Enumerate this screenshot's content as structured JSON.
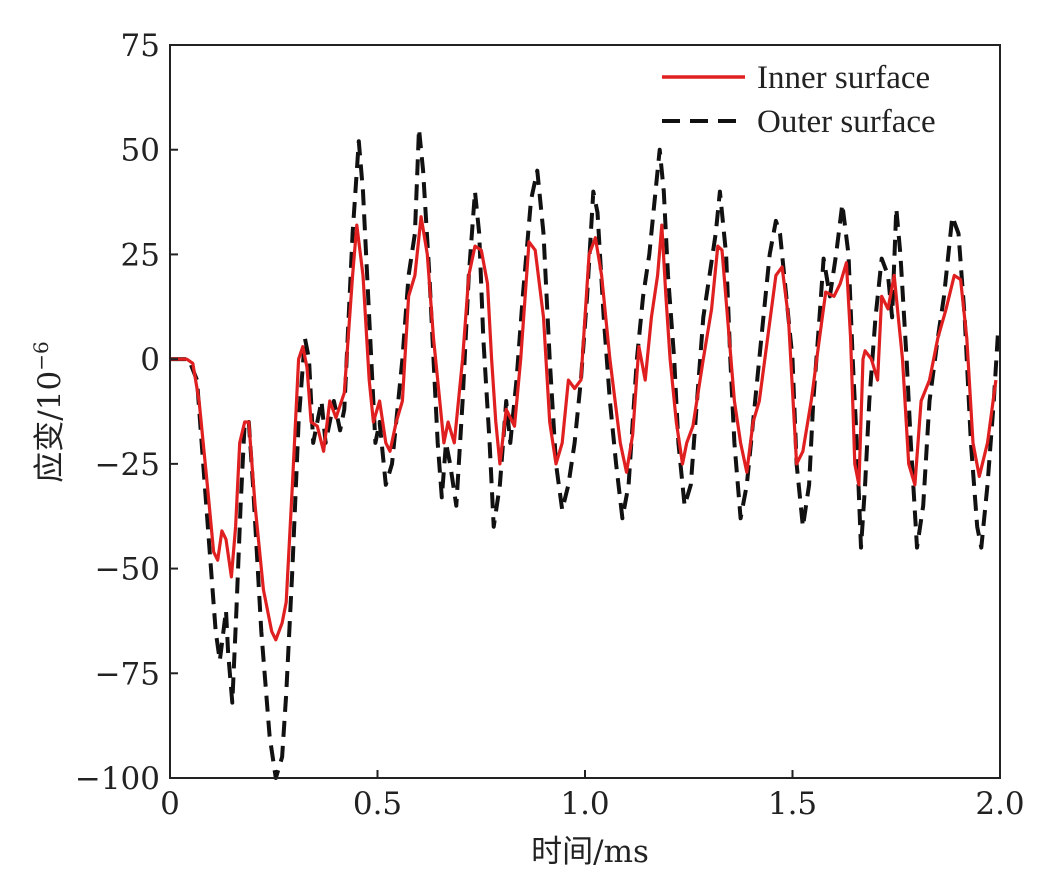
{
  "chart_data": {
    "type": "line",
    "title": "",
    "xlabel": "时间/ms",
    "ylabel_base": "应变/10",
    "ylabel_exp": "−6",
    "xlim": [
      0,
      2.0
    ],
    "ylim": [
      -100,
      75
    ],
    "x_ticks": [
      0,
      0.5,
      1.0,
      1.5,
      2.0
    ],
    "x_tick_labels": [
      "0",
      "0.5",
      "1.0",
      "1.5",
      "2.0"
    ],
    "y_ticks": [
      75,
      50,
      25,
      0,
      -25,
      -50,
      -75,
      -100
    ],
    "y_tick_labels": [
      "75",
      "50",
      "25",
      "0",
      "−25",
      "−50",
      "−75",
      "−100"
    ],
    "grid": false,
    "legend_position": "top-right",
    "series": [
      {
        "name": "Inner surface",
        "color": "#e02020",
        "style": "solid",
        "points": [
          [
            0,
            0
          ],
          [
            0.04,
            0
          ],
          [
            0.055,
            -1
          ],
          [
            0.07,
            -10
          ],
          [
            0.09,
            -30
          ],
          [
            0.105,
            -46
          ],
          [
            0.115,
            -48
          ],
          [
            0.125,
            -41
          ],
          [
            0.135,
            -43
          ],
          [
            0.148,
            -52
          ],
          [
            0.158,
            -40
          ],
          [
            0.168,
            -20
          ],
          [
            0.18,
            -15
          ],
          [
            0.19,
            -15
          ],
          [
            0.205,
            -35
          ],
          [
            0.225,
            -55
          ],
          [
            0.245,
            -65
          ],
          [
            0.255,
            -67
          ],
          [
            0.27,
            -63
          ],
          [
            0.28,
            -58
          ],
          [
            0.295,
            -30
          ],
          [
            0.31,
            0
          ],
          [
            0.32,
            3
          ],
          [
            0.33,
            -2
          ],
          [
            0.34,
            -15
          ],
          [
            0.355,
            -16
          ],
          [
            0.37,
            -22
          ],
          [
            0.385,
            -10
          ],
          [
            0.4,
            -14
          ],
          [
            0.42,
            -8
          ],
          [
            0.44,
            20
          ],
          [
            0.45,
            32
          ],
          [
            0.465,
            20
          ],
          [
            0.48,
            -5
          ],
          [
            0.49,
            -15
          ],
          [
            0.505,
            -10
          ],
          [
            0.52,
            -20
          ],
          [
            0.53,
            -22
          ],
          [
            0.545,
            -15
          ],
          [
            0.56,
            -10
          ],
          [
            0.575,
            15
          ],
          [
            0.59,
            20
          ],
          [
            0.605,
            34
          ],
          [
            0.62,
            25
          ],
          [
            0.635,
            5
          ],
          [
            0.645,
            -5
          ],
          [
            0.66,
            -20
          ],
          [
            0.67,
            -15
          ],
          [
            0.685,
            -20
          ],
          [
            0.705,
            0
          ],
          [
            0.72,
            20
          ],
          [
            0.735,
            27
          ],
          [
            0.75,
            26
          ],
          [
            0.765,
            18
          ],
          [
            0.775,
            0
          ],
          [
            0.785,
            -15
          ],
          [
            0.795,
            -25
          ],
          [
            0.81,
            -12
          ],
          [
            0.83,
            -16
          ],
          [
            0.845,
            0
          ],
          [
            0.865,
            28
          ],
          [
            0.88,
            26
          ],
          [
            0.9,
            10
          ],
          [
            0.915,
            -15
          ],
          [
            0.93,
            -25
          ],
          [
            0.945,
            -20
          ],
          [
            0.96,
            -5
          ],
          [
            0.975,
            -7
          ],
          [
            0.99,
            -5
          ],
          [
            1.01,
            25
          ],
          [
            1.025,
            29
          ],
          [
            1.04,
            20
          ],
          [
            1.06,
            0
          ],
          [
            1.085,
            -20
          ],
          [
            1.1,
            -27
          ],
          [
            1.115,
            -18
          ],
          [
            1.13,
            3
          ],
          [
            1.145,
            -5
          ],
          [
            1.16,
            10
          ],
          [
            1.175,
            20
          ],
          [
            1.185,
            32
          ],
          [
            1.195,
            15
          ],
          [
            1.205,
            0
          ],
          [
            1.22,
            -15
          ],
          [
            1.235,
            -25
          ],
          [
            1.245,
            -20
          ],
          [
            1.26,
            -16
          ],
          [
            1.285,
            0
          ],
          [
            1.305,
            12
          ],
          [
            1.32,
            27
          ],
          [
            1.33,
            26
          ],
          [
            1.345,
            8
          ],
          [
            1.36,
            -10
          ],
          [
            1.375,
            -20
          ],
          [
            1.39,
            -27
          ],
          [
            1.405,
            -15
          ],
          [
            1.42,
            -10
          ],
          [
            1.44,
            5
          ],
          [
            1.46,
            20
          ],
          [
            1.475,
            22
          ],
          [
            1.49,
            10
          ],
          [
            1.51,
            -25
          ],
          [
            1.525,
            -22
          ],
          [
            1.545,
            -10
          ],
          [
            1.565,
            5
          ],
          [
            1.58,
            16
          ],
          [
            1.6,
            15
          ],
          [
            1.615,
            18
          ],
          [
            1.63,
            23
          ],
          [
            1.64,
            5
          ],
          [
            1.65,
            -25
          ],
          [
            1.66,
            -30
          ],
          [
            1.67,
            0
          ],
          [
            1.675,
            2
          ],
          [
            1.69,
            0
          ],
          [
            1.705,
            -5
          ],
          [
            1.715,
            15
          ],
          [
            1.73,
            12
          ],
          [
            1.745,
            20
          ],
          [
            1.755,
            10
          ],
          [
            1.765,
            0
          ],
          [
            1.78,
            -25
          ],
          [
            1.795,
            -30
          ],
          [
            1.81,
            -10
          ],
          [
            1.83,
            -5
          ],
          [
            1.85,
            5
          ],
          [
            1.87,
            12
          ],
          [
            1.89,
            20
          ],
          [
            1.905,
            19
          ],
          [
            1.92,
            5
          ],
          [
            1.935,
            -20
          ],
          [
            1.95,
            -28
          ],
          [
            1.97,
            -20
          ],
          [
            1.99,
            -5
          ]
        ]
      },
      {
        "name": "Outer surface",
        "color": "#111111",
        "style": "dashed",
        "points": [
          [
            0,
            0
          ],
          [
            0.045,
            0
          ],
          [
            0.065,
            -5
          ],
          [
            0.08,
            -25
          ],
          [
            0.095,
            -45
          ],
          [
            0.11,
            -65
          ],
          [
            0.12,
            -72
          ],
          [
            0.135,
            -60
          ],
          [
            0.14,
            -70
          ],
          [
            0.15,
            -82
          ],
          [
            0.16,
            -60
          ],
          [
            0.17,
            -35
          ],
          [
            0.18,
            -15
          ],
          [
            0.19,
            -15
          ],
          [
            0.2,
            -30
          ],
          [
            0.22,
            -65
          ],
          [
            0.24,
            -90
          ],
          [
            0.255,
            -100
          ],
          [
            0.27,
            -95
          ],
          [
            0.28,
            -80
          ],
          [
            0.295,
            -50
          ],
          [
            0.31,
            -15
          ],
          [
            0.325,
            5
          ],
          [
            0.335,
            0
          ],
          [
            0.345,
            -20
          ],
          [
            0.355,
            -15
          ],
          [
            0.365,
            -10
          ],
          [
            0.375,
            -20
          ],
          [
            0.385,
            -15
          ],
          [
            0.395,
            -10
          ],
          [
            0.41,
            -17
          ],
          [
            0.42,
            -12
          ],
          [
            0.44,
            30
          ],
          [
            0.455,
            52
          ],
          [
            0.465,
            40
          ],
          [
            0.48,
            10
          ],
          [
            0.495,
            -20
          ],
          [
            0.505,
            -15
          ],
          [
            0.52,
            -30
          ],
          [
            0.535,
            -25
          ],
          [
            0.545,
            -15
          ],
          [
            0.56,
            0
          ],
          [
            0.575,
            20
          ],
          [
            0.59,
            30
          ],
          [
            0.6,
            55
          ],
          [
            0.61,
            45
          ],
          [
            0.625,
            20
          ],
          [
            0.635,
            0
          ],
          [
            0.645,
            -20
          ],
          [
            0.655,
            -33
          ],
          [
            0.665,
            -20
          ],
          [
            0.675,
            -25
          ],
          [
            0.69,
            -35
          ],
          [
            0.705,
            -10
          ],
          [
            0.72,
            20
          ],
          [
            0.735,
            40
          ],
          [
            0.745,
            30
          ],
          [
            0.755,
            5
          ],
          [
            0.77,
            -20
          ],
          [
            0.78,
            -40
          ],
          [
            0.795,
            -30
          ],
          [
            0.81,
            -10
          ],
          [
            0.82,
            -20
          ],
          [
            0.835,
            -5
          ],
          [
            0.85,
            15
          ],
          [
            0.87,
            38
          ],
          [
            0.885,
            45
          ],
          [
            0.9,
            30
          ],
          [
            0.915,
            0
          ],
          [
            0.93,
            -25
          ],
          [
            0.945,
            -36
          ],
          [
            0.96,
            -30
          ],
          [
            0.975,
            -20
          ],
          [
            0.99,
            -5
          ],
          [
            1.005,
            15
          ],
          [
            1.02,
            40
          ],
          [
            1.03,
            35
          ],
          [
            1.045,
            10
          ],
          [
            1.06,
            -10
          ],
          [
            1.075,
            -25
          ],
          [
            1.09,
            -38
          ],
          [
            1.105,
            -30
          ],
          [
            1.115,
            -15
          ],
          [
            1.125,
            0
          ],
          [
            1.14,
            15
          ],
          [
            1.155,
            25
          ],
          [
            1.17,
            40
          ],
          [
            1.18,
            50
          ],
          [
            1.19,
            40
          ],
          [
            1.2,
            20
          ],
          [
            1.215,
            0
          ],
          [
            1.225,
            -20
          ],
          [
            1.24,
            -35
          ],
          [
            1.255,
            -30
          ],
          [
            1.27,
            -10
          ],
          [
            1.285,
            10
          ],
          [
            1.3,
            20
          ],
          [
            1.315,
            30
          ],
          [
            1.325,
            40
          ],
          [
            1.34,
            25
          ],
          [
            1.35,
            0
          ],
          [
            1.36,
            -20
          ],
          [
            1.375,
            -38
          ],
          [
            1.39,
            -30
          ],
          [
            1.4,
            -20
          ],
          [
            1.415,
            -5
          ],
          [
            1.43,
            10
          ],
          [
            1.445,
            25
          ],
          [
            1.46,
            33
          ],
          [
            1.47,
            30
          ],
          [
            1.485,
            15
          ],
          [
            1.5,
            0
          ],
          [
            1.51,
            -25
          ],
          [
            1.525,
            -40
          ],
          [
            1.54,
            -30
          ],
          [
            1.55,
            -10
          ],
          [
            1.565,
            10
          ],
          [
            1.575,
            24
          ],
          [
            1.59,
            15
          ],
          [
            1.605,
            25
          ],
          [
            1.62,
            37
          ],
          [
            1.635,
            25
          ],
          [
            1.645,
            0
          ],
          [
            1.655,
            -20
          ],
          [
            1.665,
            -45
          ],
          [
            1.675,
            -30
          ],
          [
            1.685,
            -10
          ],
          [
            1.7,
            10
          ],
          [
            1.715,
            24
          ],
          [
            1.73,
            20
          ],
          [
            1.74,
            10
          ],
          [
            1.75,
            36
          ],
          [
            1.76,
            25
          ],
          [
            1.775,
            0
          ],
          [
            1.785,
            -20
          ],
          [
            1.8,
            -45
          ],
          [
            1.815,
            -35
          ],
          [
            1.83,
            -10
          ],
          [
            1.85,
            5
          ],
          [
            1.865,
            15
          ],
          [
            1.885,
            34
          ],
          [
            1.9,
            30
          ],
          [
            1.915,
            10
          ],
          [
            1.93,
            -20
          ],
          [
            1.945,
            -40
          ],
          [
            1.955,
            -45
          ],
          [
            1.97,
            -30
          ],
          [
            1.985,
            -10
          ],
          [
            1.995,
            6
          ]
        ]
      }
    ]
  }
}
